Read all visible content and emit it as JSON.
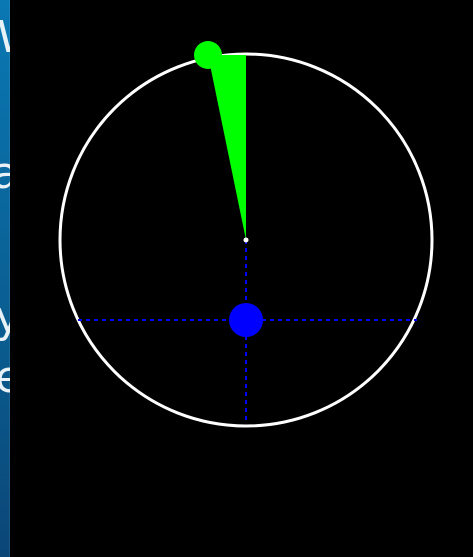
{
  "background_window": {
    "visible_text": [
      {
        "id": "bg-text-1",
        "text": "W"
      },
      {
        "id": "bg-text-2",
        "text": "a"
      },
      {
        "id": "bg-text-3",
        "text": "y"
      },
      {
        "id": "bg-text-4",
        "text": "e"
      }
    ],
    "colors": {
      "accent_top": "#0a78b3",
      "accent_bottom": "#0b4677"
    }
  },
  "canvas": {
    "colors": {
      "background": "#000000",
      "outline": "#ffffff",
      "crosshair": "#0000ff",
      "dot": "#0000ff",
      "pointer": "#00ff00",
      "center_marker": "#ffffff"
    },
    "indicator": {
      "heading_deg": -2,
      "sweep_start_deg": -12,
      "sweep_end_deg": 0
    },
    "icons": {
      "outline": "circle-outline",
      "crosshair": "crosshair-lines",
      "dot": "blue-dot-icon",
      "pointer": "green-pointer-icon"
    }
  }
}
